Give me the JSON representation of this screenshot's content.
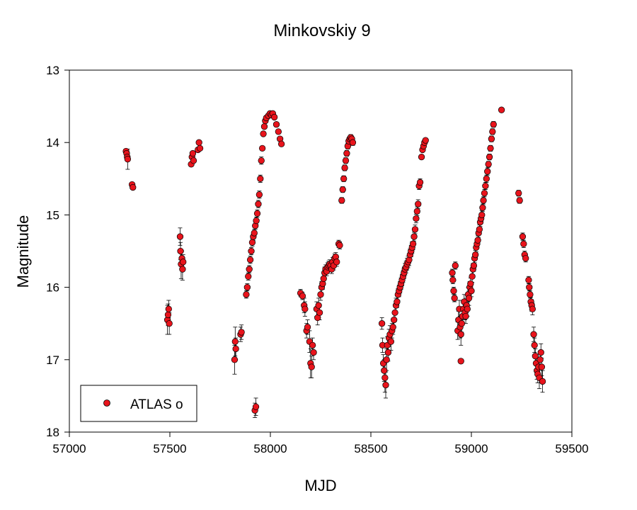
{
  "chart_data": {
    "type": "scatter",
    "title": "Minkovskiy 9",
    "xlabel": "MJD",
    "ylabel": "Magnitude",
    "xlim": [
      57000,
      59500
    ],
    "ylim": [
      13,
      18
    ],
    "y_inverted": true,
    "grid": false,
    "legend_position": "bottom-left",
    "x_ticks": [
      "57000",
      "57500",
      "58000",
      "58500",
      "59000",
      "59500"
    ],
    "y_ticks": [
      "13",
      "14",
      "15",
      "16",
      "17",
      "18"
    ],
    "series": [
      {
        "name": "ATLAS o",
        "color": "#e8141c",
        "edge_color": "#000000",
        "points": [
          [
            57282,
            14.12,
            0.02
          ],
          [
            57285,
            14.15,
            0.03
          ],
          [
            57288,
            14.2,
            0.03
          ],
          [
            57290,
            14.23,
            0.14
          ],
          [
            57312,
            14.58,
            0.02
          ],
          [
            57316,
            14.62,
            0.02
          ],
          [
            57488,
            16.45,
            0.2
          ],
          [
            57491,
            16.38,
            0.15
          ],
          [
            57494,
            16.3,
            0.12
          ],
          [
            57497,
            16.5,
            0.15
          ],
          [
            57551,
            15.3,
            0.12
          ],
          [
            57553,
            15.5,
            0.12
          ],
          [
            57556,
            15.68,
            0.2
          ],
          [
            57560,
            15.6,
            0.1
          ],
          [
            57563,
            15.75,
            0.15
          ],
          [
            57566,
            15.65,
            0.1
          ],
          [
            57606,
            14.3,
            0.03
          ],
          [
            57610,
            14.2,
            0.03
          ],
          [
            57614,
            14.15,
            0.03
          ],
          [
            57618,
            14.25,
            0.03
          ],
          [
            57640,
            14.1,
            0.03
          ],
          [
            57645,
            14.0,
            0.03
          ],
          [
            57650,
            14.08,
            0.03
          ],
          [
            57822,
            17.0,
            0.2
          ],
          [
            57825,
            16.75,
            0.2
          ],
          [
            57828,
            16.85,
            0.15
          ],
          [
            57852,
            16.65,
            0.1
          ],
          [
            57856,
            16.62,
            0.1
          ],
          [
            57923,
            17.7,
            0.1
          ],
          [
            57928,
            17.65,
            0.12
          ],
          [
            57880,
            16.1,
            0.05
          ],
          [
            57885,
            16.0,
            0.05
          ],
          [
            57890,
            15.85,
            0.05
          ],
          [
            57895,
            15.75,
            0.05
          ],
          [
            57900,
            15.62,
            0.05
          ],
          [
            57905,
            15.5,
            0.05
          ],
          [
            57910,
            15.38,
            0.05
          ],
          [
            57915,
            15.3,
            0.05
          ],
          [
            57920,
            15.25,
            0.05
          ],
          [
            57925,
            15.15,
            0.05
          ],
          [
            57930,
            15.08,
            0.05
          ],
          [
            57935,
            14.98,
            0.05
          ],
          [
            57940,
            14.85,
            0.05
          ],
          [
            57945,
            14.72,
            0.05
          ],
          [
            57950,
            14.5,
            0.05
          ],
          [
            57955,
            14.25,
            0.05
          ],
          [
            57960,
            14.08,
            0.03
          ],
          [
            57965,
            13.88,
            0.03
          ],
          [
            57970,
            13.78,
            0.03
          ],
          [
            57975,
            13.7,
            0.03
          ],
          [
            57980,
            13.66,
            0.03
          ],
          [
            57990,
            13.63,
            0.03
          ],
          [
            57998,
            13.6,
            0.03
          ],
          [
            58005,
            13.62,
            0.03
          ],
          [
            58012,
            13.6,
            0.03
          ],
          [
            58020,
            13.65,
            0.03
          ],
          [
            58030,
            13.75,
            0.03
          ],
          [
            58040,
            13.85,
            0.03
          ],
          [
            58048,
            13.95,
            0.03
          ],
          [
            58055,
            14.02,
            0.03
          ],
          [
            58150,
            16.08,
            0.05
          ],
          [
            58160,
            16.12,
            0.05
          ],
          [
            58168,
            16.25,
            0.1
          ],
          [
            58172,
            16.3,
            0.1
          ],
          [
            58180,
            16.6,
            0.1
          ],
          [
            58185,
            16.55,
            0.1
          ],
          [
            58195,
            16.75,
            0.15
          ],
          [
            58200,
            17.05,
            0.2
          ],
          [
            58205,
            17.1,
            0.15
          ],
          [
            58210,
            16.8,
            0.1
          ],
          [
            58215,
            16.9,
            0.1
          ],
          [
            58230,
            16.3,
            0.1
          ],
          [
            58235,
            16.42,
            0.1
          ],
          [
            58240,
            16.25,
            0.1
          ],
          [
            58245,
            16.35,
            0.1
          ],
          [
            58250,
            16.1,
            0.08
          ],
          [
            58255,
            16.0,
            0.08
          ],
          [
            58260,
            15.95,
            0.08
          ],
          [
            58265,
            15.88,
            0.08
          ],
          [
            58270,
            15.8,
            0.08
          ],
          [
            58275,
            15.75,
            0.06
          ],
          [
            58280,
            15.78,
            0.06
          ],
          [
            58285,
            15.72,
            0.06
          ],
          [
            58290,
            15.7,
            0.06
          ],
          [
            58295,
            15.68,
            0.06
          ],
          [
            58300,
            15.7,
            0.06
          ],
          [
            58305,
            15.75,
            0.06
          ],
          [
            58310,
            15.65,
            0.06
          ],
          [
            58315,
            15.7,
            0.06
          ],
          [
            58320,
            15.6,
            0.06
          ],
          [
            58325,
            15.58,
            0.06
          ],
          [
            58330,
            15.65,
            0.06
          ],
          [
            58340,
            15.4,
            0.05
          ],
          [
            58345,
            15.42,
            0.05
          ],
          [
            58355,
            14.8,
            0.04
          ],
          [
            58360,
            14.65,
            0.04
          ],
          [
            58365,
            14.5,
            0.04
          ],
          [
            58370,
            14.35,
            0.04
          ],
          [
            58375,
            14.25,
            0.04
          ],
          [
            58380,
            14.15,
            0.04
          ],
          [
            58385,
            14.05,
            0.04
          ],
          [
            58390,
            13.98,
            0.04
          ],
          [
            58395,
            13.95,
            0.04
          ],
          [
            58400,
            13.93,
            0.04
          ],
          [
            58405,
            13.95,
            0.04
          ],
          [
            58410,
            14.0,
            0.04
          ],
          [
            58555,
            16.5,
            0.08
          ],
          [
            58558,
            16.8,
            0.1
          ],
          [
            58562,
            17.05,
            0.12
          ],
          [
            58566,
            17.15,
            0.15
          ],
          [
            58570,
            17.25,
            0.2
          ],
          [
            58574,
            17.35,
            0.18
          ],
          [
            58578,
            17.0,
            0.15
          ],
          [
            58582,
            16.8,
            0.12
          ],
          [
            58586,
            16.9,
            0.12
          ],
          [
            58590,
            16.7,
            0.12
          ],
          [
            58595,
            16.65,
            0.12
          ],
          [
            58600,
            16.75,
            0.12
          ],
          [
            58605,
            16.6,
            0.1
          ],
          [
            58610,
            16.55,
            0.1
          ],
          [
            58615,
            16.45,
            0.1
          ],
          [
            58620,
            16.35,
            0.1
          ],
          [
            58625,
            16.25,
            0.1
          ],
          [
            58630,
            16.2,
            0.08
          ],
          [
            58635,
            16.1,
            0.08
          ],
          [
            58640,
            16.05,
            0.08
          ],
          [
            58645,
            16.0,
            0.08
          ],
          [
            58650,
            15.95,
            0.08
          ],
          [
            58655,
            15.9,
            0.08
          ],
          [
            58660,
            15.85,
            0.08
          ],
          [
            58665,
            15.8,
            0.08
          ],
          [
            58670,
            15.75,
            0.08
          ],
          [
            58675,
            15.72,
            0.08
          ],
          [
            58680,
            15.68,
            0.08
          ],
          [
            58685,
            15.65,
            0.08
          ],
          [
            58690,
            15.62,
            0.08
          ],
          [
            58695,
            15.55,
            0.08
          ],
          [
            58700,
            15.5,
            0.08
          ],
          [
            58705,
            15.45,
            0.08
          ],
          [
            58710,
            15.4,
            0.08
          ],
          [
            58715,
            15.3,
            0.06
          ],
          [
            58720,
            15.2,
            0.06
          ],
          [
            58725,
            15.05,
            0.06
          ],
          [
            58730,
            14.95,
            0.06
          ],
          [
            58735,
            14.85,
            0.06
          ],
          [
            58740,
            14.6,
            0.05
          ],
          [
            58745,
            14.55,
            0.05
          ],
          [
            58752,
            14.2,
            0.03
          ],
          [
            58757,
            14.1,
            0.03
          ],
          [
            58762,
            14.05,
            0.03
          ],
          [
            58767,
            14.0,
            0.03
          ],
          [
            58772,
            13.97,
            0.03
          ],
          [
            58905,
            15.8,
            0.05
          ],
          [
            58908,
            15.9,
            0.05
          ],
          [
            58912,
            16.05,
            0.05
          ],
          [
            58916,
            16.15,
            0.05
          ],
          [
            58920,
            15.7,
            0.05
          ],
          [
            58932,
            16.6,
            0.12
          ],
          [
            58936,
            16.45,
            0.12
          ],
          [
            58940,
            16.3,
            0.12
          ],
          [
            58944,
            16.55,
            0.15
          ],
          [
            58948,
            16.65,
            0.15
          ],
          [
            58952,
            16.5,
            0.12
          ],
          [
            58956,
            16.4,
            0.12
          ],
          [
            58960,
            16.3,
            0.1
          ],
          [
            58964,
            16.2,
            0.1
          ],
          [
            58968,
            16.35,
            0.1
          ],
          [
            58972,
            16.4,
            0.1
          ],
          [
            58976,
            16.25,
            0.1
          ],
          [
            58980,
            16.3,
            0.1
          ],
          [
            58984,
            16.1,
            0.1
          ],
          [
            58988,
            16.15,
            0.1
          ],
          [
            58992,
            16.0,
            0.08
          ],
          [
            58996,
            15.95,
            0.08
          ],
          [
            59000,
            16.05,
            0.08
          ],
          [
            59004,
            15.85,
            0.08
          ],
          [
            59008,
            15.75,
            0.08
          ],
          [
            59012,
            15.7,
            0.08
          ],
          [
            59016,
            15.6,
            0.06
          ],
          [
            59020,
            15.55,
            0.06
          ],
          [
            59024,
            15.45,
            0.06
          ],
          [
            59028,
            15.4,
            0.06
          ],
          [
            59032,
            15.35,
            0.06
          ],
          [
            59036,
            15.25,
            0.06
          ],
          [
            59040,
            15.2,
            0.06
          ],
          [
            59044,
            15.1,
            0.06
          ],
          [
            59048,
            15.05,
            0.06
          ],
          [
            59052,
            15.0,
            0.06
          ],
          [
            59056,
            14.9,
            0.05
          ],
          [
            59060,
            14.8,
            0.05
          ],
          [
            59065,
            14.7,
            0.05
          ],
          [
            59070,
            14.6,
            0.05
          ],
          [
            59075,
            14.5,
            0.05
          ],
          [
            59080,
            14.4,
            0.05
          ],
          [
            59085,
            14.3,
            0.04
          ],
          [
            59090,
            14.2,
            0.04
          ],
          [
            59095,
            14.08,
            0.04
          ],
          [
            59100,
            13.95,
            0.04
          ],
          [
            59105,
            13.85,
            0.04
          ],
          [
            59110,
            13.75,
            0.04
          ],
          [
            58948,
            17.02,
            0.03
          ],
          [
            59150,
            13.55,
            0.02
          ],
          [
            59235,
            14.7,
            0.04
          ],
          [
            59240,
            14.8,
            0.04
          ],
          [
            59255,
            15.3,
            0.05
          ],
          [
            59260,
            15.4,
            0.05
          ],
          [
            59265,
            15.55,
            0.05
          ],
          [
            59270,
            15.6,
            0.05
          ],
          [
            59285,
            15.9,
            0.05
          ],
          [
            59288,
            16.0,
            0.05
          ],
          [
            59292,
            16.1,
            0.05
          ],
          [
            59296,
            16.2,
            0.06
          ],
          [
            59300,
            16.25,
            0.08
          ],
          [
            59304,
            16.3,
            0.08
          ],
          [
            59310,
            16.65,
            0.1
          ],
          [
            59314,
            16.8,
            0.1
          ],
          [
            59318,
            16.95,
            0.1
          ],
          [
            59322,
            17.05,
            0.12
          ],
          [
            59326,
            17.15,
            0.12
          ],
          [
            59330,
            17.2,
            0.12
          ],
          [
            59334,
            17.1,
            0.12
          ],
          [
            59338,
            17.25,
            0.15
          ],
          [
            59342,
            17.0,
            0.12
          ],
          [
            59346,
            16.9,
            0.12
          ],
          [
            59350,
            17.1,
            0.12
          ],
          [
            59354,
            17.3,
            0.15
          ]
        ]
      }
    ]
  }
}
